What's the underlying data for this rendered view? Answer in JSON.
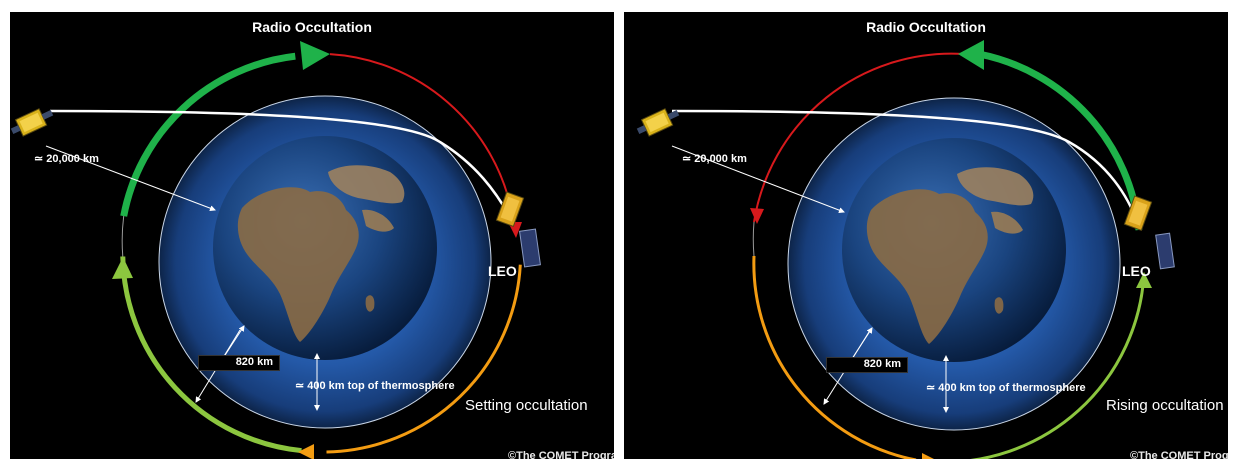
{
  "panels": [
    {
      "id": "left",
      "title": "Radio Occultation",
      "leo_label": "LEO",
      "gps_distance": "≃ 20,000 km",
      "leo_altitude": "820 km",
      "thermosphere": "≃ 400 km top of thermosphere",
      "caption": "Setting occultation",
      "credit": "©The COMET Program"
    },
    {
      "id": "right",
      "title": "Radio Occultation",
      "leo_label": "LEO",
      "gps_distance": "≃ 20,000 km",
      "leo_altitude": "820 km",
      "thermosphere": "≃ 400 km top of thermosphere",
      "caption": "Rising occultation",
      "credit": "©The COMET Program"
    }
  ],
  "colors": {
    "arc_green": "#1fb24a",
    "arc_light_green": "#8cc63f",
    "arc_red": "#d7191c",
    "arc_orange": "#f39c12",
    "signal_path": "#ffffff",
    "atmosphere": "#1e4fa0",
    "ocean": "#0c2f6b",
    "land": "#8a6b45"
  }
}
